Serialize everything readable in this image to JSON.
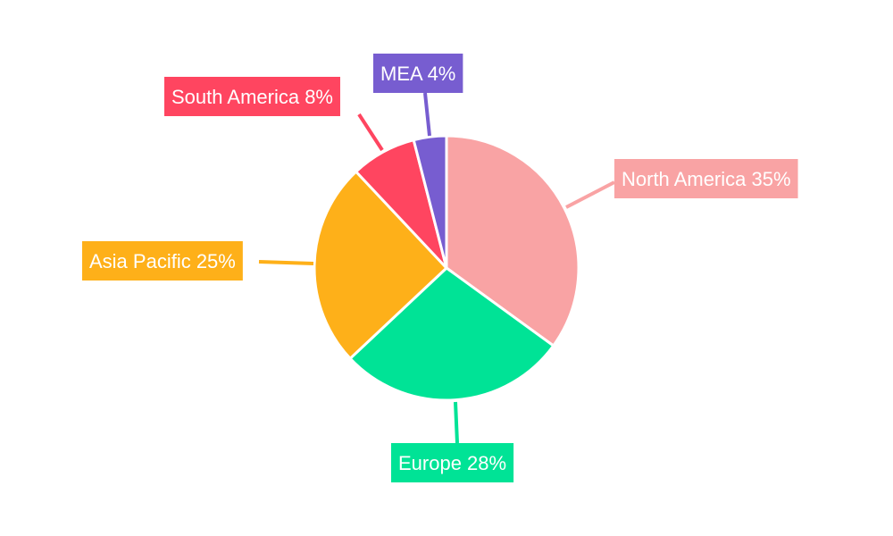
{
  "chart_data": {
    "type": "pie",
    "title": "",
    "start_angle_deg": 0,
    "direction": "clockwise",
    "slices": [
      {
        "label": "North America",
        "value": 35,
        "data_label": "North America 35%",
        "color": "#f9a3a4"
      },
      {
        "label": "Europe",
        "value": 28,
        "data_label": "Europe 28%",
        "color": "#00e396"
      },
      {
        "label": "Asia Pacific",
        "value": 25,
        "data_label": "Asia Pacific 25%",
        "color": "#feb019"
      },
      {
        "label": "South America",
        "value": 8,
        "data_label": "South America 8%",
        "color": "#ff4560"
      },
      {
        "label": "MEA",
        "value": 4,
        "data_label": "MEA 4%",
        "color": "#775dd0"
      }
    ],
    "legend": "none"
  }
}
